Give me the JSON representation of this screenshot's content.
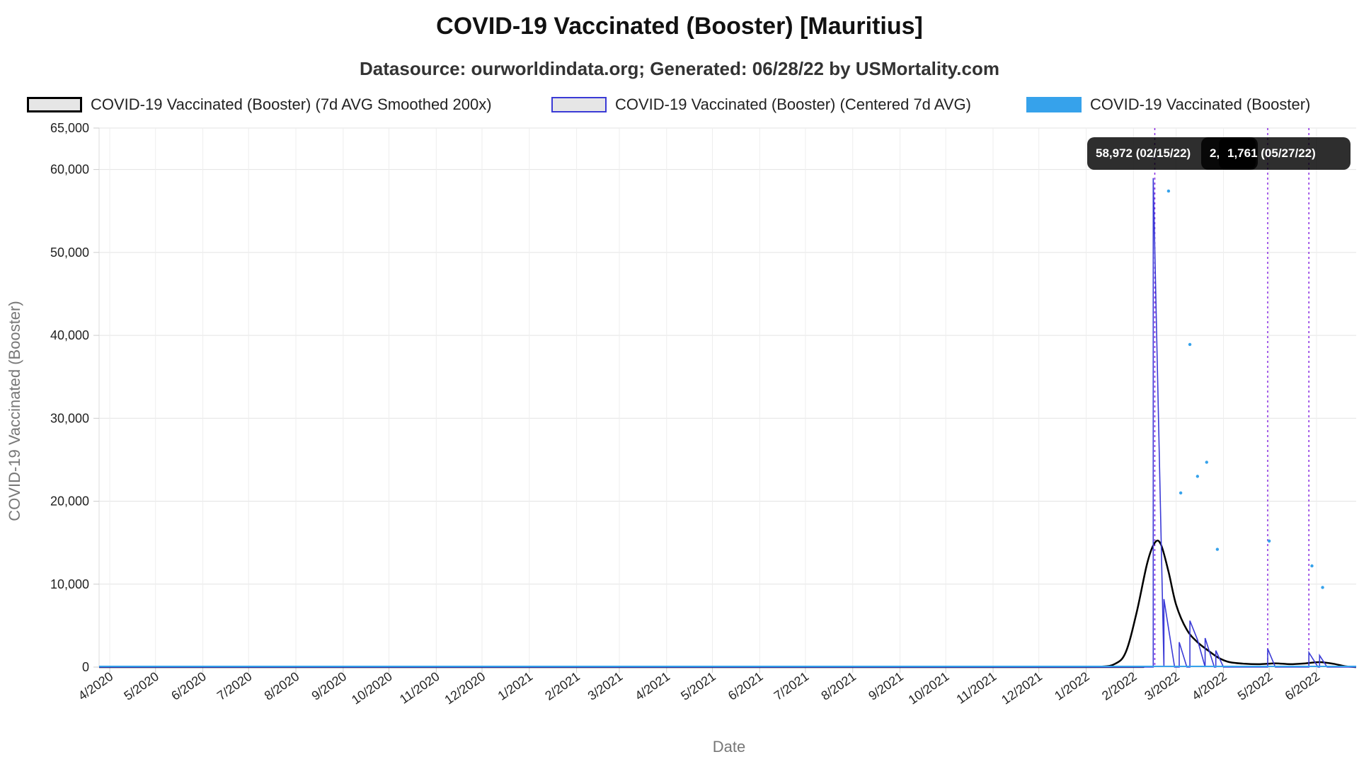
{
  "header": {
    "title": "COVID-19 Vaccinated (Booster) [Mauritius]",
    "subtitle": "Datasource: ourworldindata.org; Generated: 06/28/22 by USMortality.com"
  },
  "legend": [
    {
      "label": "COVID-19 Vaccinated (Booster) (7d AVG Smoothed 200x)",
      "stroke": "#000000",
      "fill": "#e6e6e6"
    },
    {
      "label": "COVID-19 Vaccinated (Booster) (Centered 7d AVG)",
      "stroke": "#3a3ad6",
      "fill": "#e6e6e6"
    },
    {
      "label": "COVID-19 Vaccinated (Booster)",
      "stroke": "#36a2eb",
      "fill": "#36a2eb"
    }
  ],
  "tooltips": [
    {
      "text": "58,972 (02/15/22)"
    },
    {
      "text": "2,"
    },
    {
      "text": "1,761 (05/27/22)"
    }
  ],
  "chart_data": {
    "type": "line",
    "title": "COVID-19 Vaccinated (Booster) [Mauritius]",
    "xlabel": "Date",
    "ylabel": "COVID-19 Vaccinated (Booster)",
    "ylim": [
      0,
      65000
    ],
    "xlim": [
      "2020-03-25",
      "2022-06-27"
    ],
    "yticks": [
      0,
      10000,
      20000,
      30000,
      40000,
      50000,
      60000,
      65000
    ],
    "ytick_labels": [
      "0",
      "10,000",
      "20,000",
      "30,000",
      "40,000",
      "50,000",
      "60,000",
      "65,000"
    ],
    "xticks": [
      "2020-04-01",
      "2020-05-01",
      "2020-06-01",
      "2020-07-01",
      "2020-08-01",
      "2020-09-01",
      "2020-10-01",
      "2020-11-01",
      "2020-12-01",
      "2021-01-01",
      "2021-02-01",
      "2021-03-01",
      "2021-04-01",
      "2021-05-01",
      "2021-06-01",
      "2021-07-01",
      "2021-08-01",
      "2021-09-01",
      "2021-10-01",
      "2021-11-01",
      "2021-12-01",
      "2022-01-01",
      "2022-02-01",
      "2022-03-01",
      "2022-04-01",
      "2022-05-01",
      "2022-06-01"
    ],
    "xtick_labels": [
      "4/2020",
      "5/2020",
      "6/2020",
      "7/2020",
      "8/2020",
      "9/2020",
      "10/2020",
      "11/2020",
      "12/2020",
      "1/2021",
      "2/2021",
      "3/2021",
      "4/2021",
      "5/2021",
      "6/2021",
      "7/2021",
      "8/2021",
      "9/2021",
      "10/2021",
      "11/2021",
      "12/2021",
      "1/2022",
      "2/2022",
      "3/2022",
      "4/2022",
      "5/2022",
      "6/2022"
    ],
    "grid": true,
    "legend_position": "top",
    "marker_dates": [
      "2022-02-15",
      "2022-04-30",
      "2022-05-27"
    ],
    "series": [
      {
        "name": "COVID-19 Vaccinated (Booster) (7d AVG Smoothed 200x)",
        "color": "#000000",
        "style": "line",
        "points": [
          [
            "2020-03-25",
            0
          ],
          [
            "2021-12-15",
            0
          ],
          [
            "2022-01-10",
            50
          ],
          [
            "2022-01-20",
            400
          ],
          [
            "2022-01-27",
            1800
          ],
          [
            "2022-02-03",
            6500
          ],
          [
            "2022-02-10",
            12500
          ],
          [
            "2022-02-15",
            15000
          ],
          [
            "2022-02-19",
            14800
          ],
          [
            "2022-02-24",
            11500
          ],
          [
            "2022-03-01",
            7500
          ],
          [
            "2022-03-08",
            4500
          ],
          [
            "2022-03-15",
            3000
          ],
          [
            "2022-03-22",
            2000
          ],
          [
            "2022-03-29",
            1100
          ],
          [
            "2022-04-05",
            600
          ],
          [
            "2022-04-15",
            400
          ],
          [
            "2022-04-25",
            350
          ],
          [
            "2022-05-05",
            450
          ],
          [
            "2022-05-15",
            350
          ],
          [
            "2022-05-25",
            450
          ],
          [
            "2022-06-03",
            600
          ],
          [
            "2022-06-12",
            400
          ],
          [
            "2022-06-20",
            100
          ],
          [
            "2022-06-27",
            0
          ]
        ]
      },
      {
        "name": "COVID-19 Vaccinated (Booster) (Centered 7d AVG)",
        "color": "#3a3ad6",
        "style": "step",
        "points": [
          [
            "2020-03-25",
            0
          ],
          [
            "2022-02-14",
            0
          ],
          [
            "2022-02-14",
            58972
          ],
          [
            "2022-02-21",
            0
          ],
          [
            "2022-02-21",
            8200
          ],
          [
            "2022-02-28",
            0
          ],
          [
            "2022-03-03",
            0
          ],
          [
            "2022-03-03",
            3000
          ],
          [
            "2022-03-08",
            0
          ],
          [
            "2022-03-10",
            0
          ],
          [
            "2022-03-10",
            5600
          ],
          [
            "2022-03-15",
            3300
          ],
          [
            "2022-03-20",
            0
          ],
          [
            "2022-03-20",
            3500
          ],
          [
            "2022-03-26",
            0
          ],
          [
            "2022-03-27",
            0
          ],
          [
            "2022-03-27",
            2000
          ],
          [
            "2022-04-01",
            0
          ],
          [
            "2022-04-30",
            0
          ],
          [
            "2022-04-30",
            2200
          ],
          [
            "2022-05-05",
            0
          ],
          [
            "2022-05-27",
            0
          ],
          [
            "2022-05-27",
            1761
          ],
          [
            "2022-06-02",
            0
          ],
          [
            "2022-06-03",
            0
          ],
          [
            "2022-06-03",
            1400
          ],
          [
            "2022-06-08",
            0
          ],
          [
            "2022-06-27",
            0
          ]
        ]
      },
      {
        "name": "COVID-19 Vaccinated (Booster)",
        "color": "#36a2eb",
        "style": "scatter",
        "points": [
          [
            "2022-02-24",
            57400
          ],
          [
            "2022-03-04",
            21000
          ],
          [
            "2022-03-10",
            38900
          ],
          [
            "2022-03-15",
            23000
          ],
          [
            "2022-03-21",
            24700
          ],
          [
            "2022-03-28",
            14200
          ],
          [
            "2022-05-01",
            15200
          ],
          [
            "2022-05-29",
            12200
          ],
          [
            "2022-06-05",
            9600
          ]
        ]
      }
    ]
  }
}
